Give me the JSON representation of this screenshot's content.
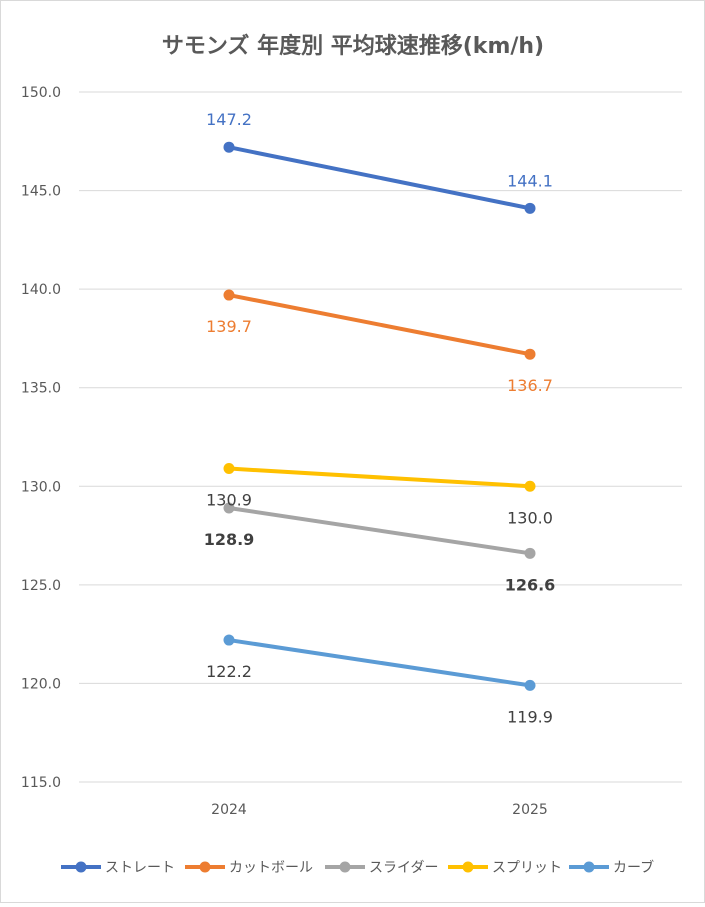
{
  "chart_data": {
    "type": "line",
    "title": "サモンズ 年度別 平均球速推移(km/h)",
    "xlabel": "",
    "ylabel": "",
    "categories": [
      "2024",
      "2025"
    ],
    "ylim": [
      115.0,
      150.0
    ],
    "yticks": [
      "115.0",
      "120.0",
      "125.0",
      "130.0",
      "135.0",
      "140.0",
      "145.0",
      "150.0"
    ],
    "grid": true,
    "legend_position": "bottom",
    "series": [
      {
        "name": "ストレート",
        "color": "#4472c4",
        "values": [
          147.2,
          144.1
        ],
        "labels": [
          "147.2",
          "144.1"
        ],
        "label_color": "#4472c4",
        "label_bold": false,
        "label_pos": [
          "above",
          "above"
        ]
      },
      {
        "name": "カットボール",
        "color": "#ed7d31",
        "values": [
          139.7,
          136.7
        ],
        "labels": [
          "139.7",
          "136.7"
        ],
        "label_color": "#ed7d31",
        "label_bold": false,
        "label_pos": [
          "below",
          "below"
        ]
      },
      {
        "name": "スライダー",
        "color": "#a5a5a5",
        "values": [
          128.9,
          126.6
        ],
        "labels": [
          "128.9",
          "126.6"
        ],
        "label_color": "#404040",
        "label_bold": true,
        "label_pos": [
          "below",
          "below"
        ]
      },
      {
        "name": "スプリット",
        "color": "#ffc000",
        "values": [
          130.9,
          130.0
        ],
        "labels": [
          "130.9",
          "130.0"
        ],
        "label_color": "#404040",
        "label_bold": false,
        "label_pos": [
          "below",
          "below"
        ]
      },
      {
        "name": "カーブ",
        "color": "#5b9bd5",
        "values": [
          122.2,
          119.9
        ],
        "labels": [
          "122.2",
          "119.9"
        ],
        "label_color": "#404040",
        "label_bold": false,
        "label_pos": [
          "below",
          "below"
        ]
      }
    ]
  }
}
